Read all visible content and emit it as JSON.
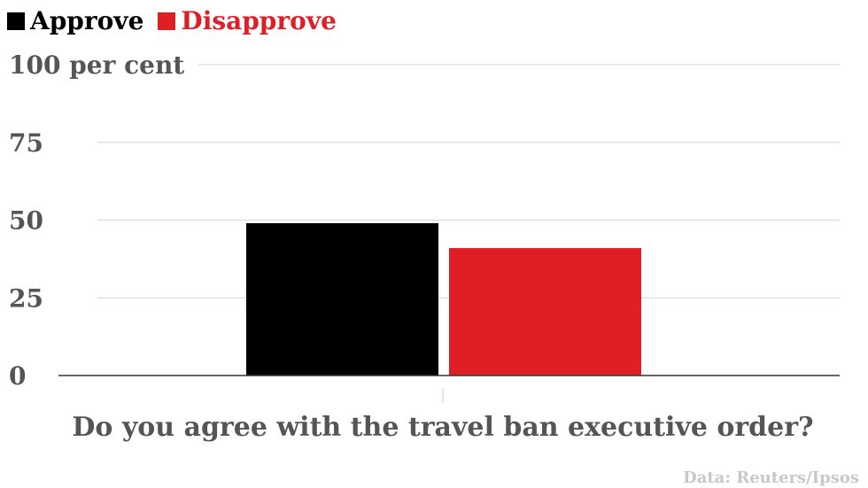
{
  "chart_data": {
    "type": "bar",
    "categories": [
      "Do you agree with the travel ban executive order?"
    ],
    "series": [
      {
        "name": "Approve",
        "values": [
          49
        ],
        "color": "#000000"
      },
      {
        "name": "Disapprove",
        "values": [
          41
        ],
        "color": "#de1f26"
      }
    ],
    "ylim": [
      0,
      100
    ],
    "yticks": [
      {
        "value": 0,
        "label": "0"
      },
      {
        "value": 25,
        "label": "25"
      },
      {
        "value": 50,
        "label": "50"
      },
      {
        "value": 75,
        "label": "75"
      },
      {
        "value": 100,
        "label": "100 per cent"
      }
    ],
    "xlabel": "Do you agree with the travel ban executive order?",
    "grid": true,
    "legend_position": "top-left",
    "source": "Data: Reuters/Ipsos"
  }
}
